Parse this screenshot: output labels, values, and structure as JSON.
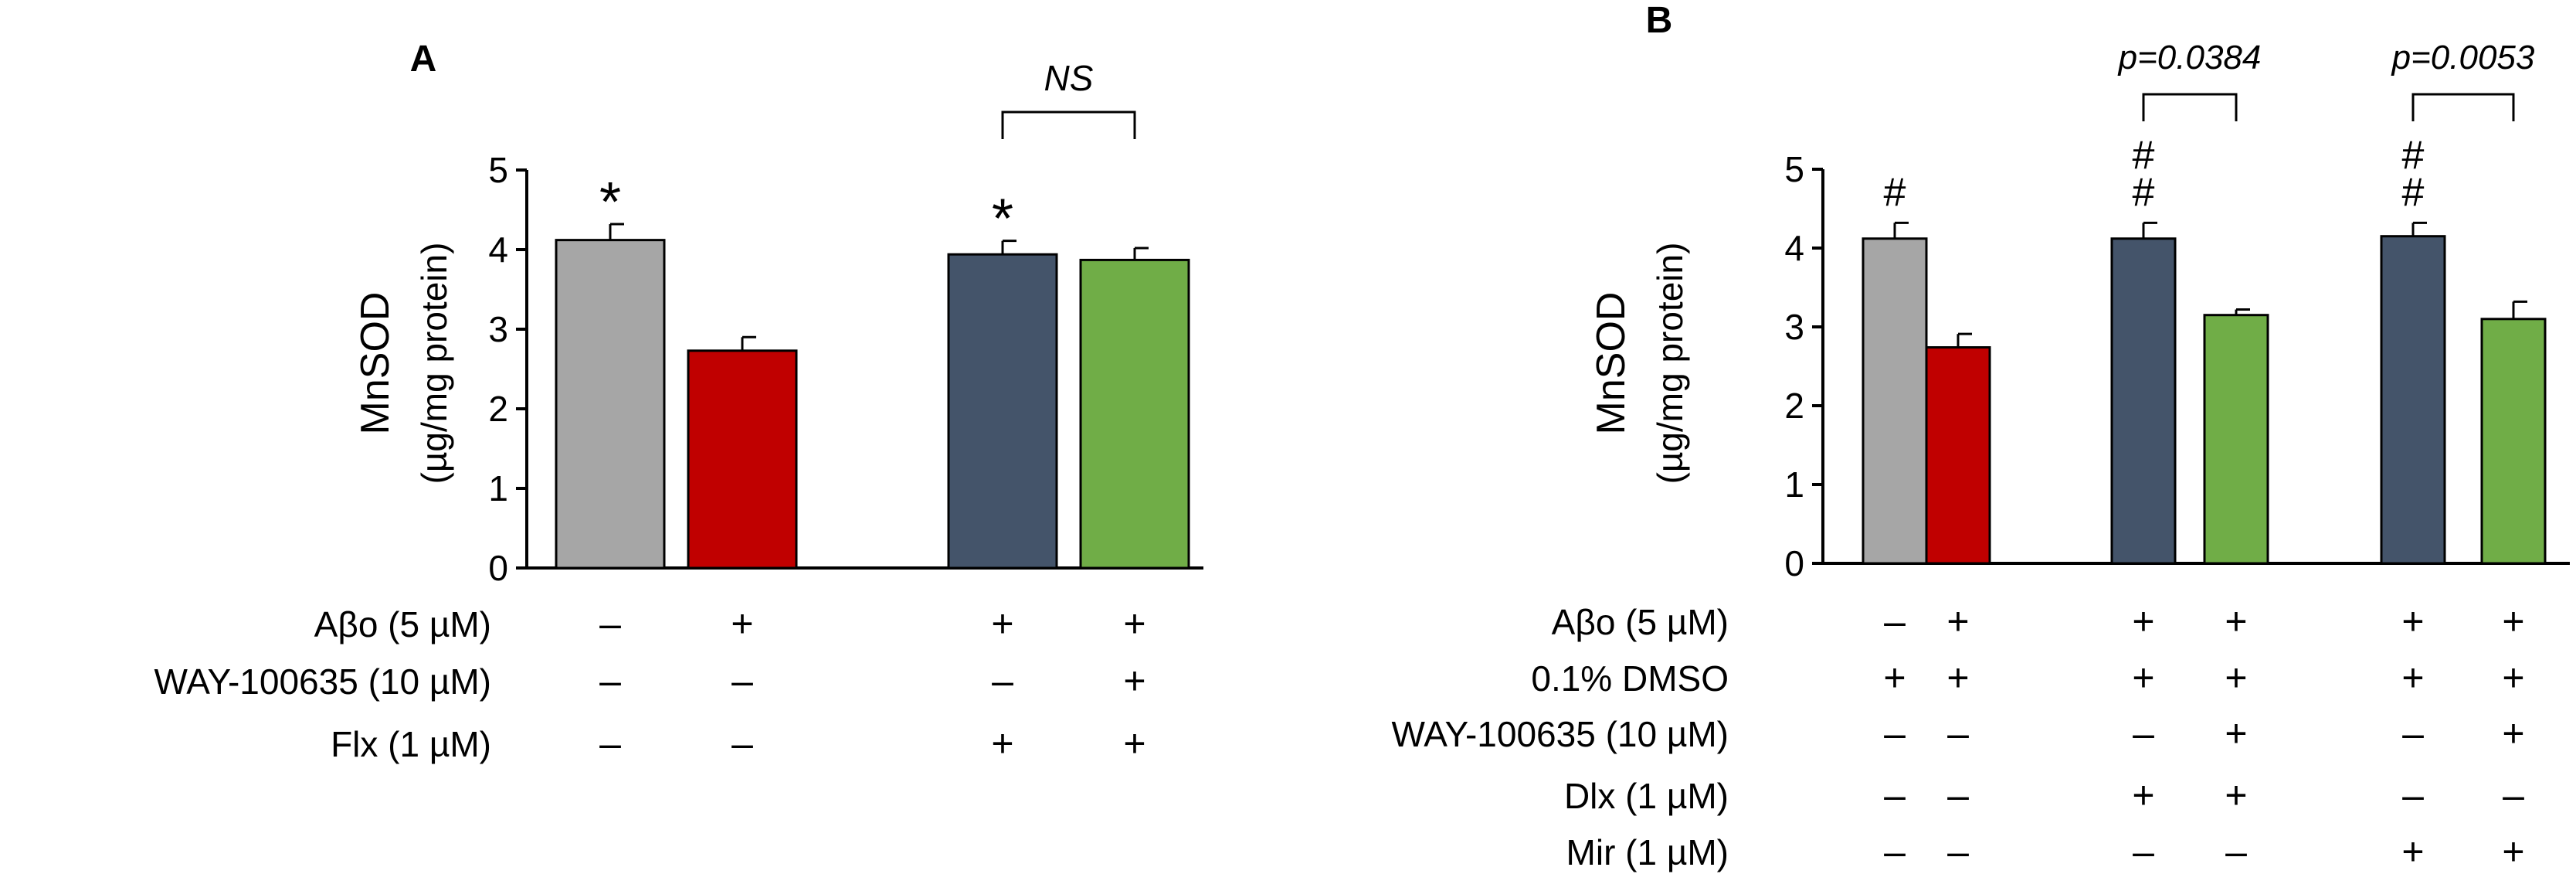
{
  "chart_data": [
    {
      "panel": "A",
      "type": "bar",
      "ylabel": "MnSOD",
      "ylabel_unit": "(µg/mg protein)",
      "ylim": [
        0,
        5
      ],
      "yticks": [
        "0",
        "1",
        "2",
        "3",
        "4",
        "5"
      ],
      "bars": [
        {
          "value": 4.12,
          "error": 0.2,
          "color": "#a6a6a6",
          "mark": "*"
        },
        {
          "value": 2.73,
          "error": 0.17,
          "color": "#c00000",
          "mark": ""
        },
        {
          "value": 3.94,
          "error": 0.17,
          "color": "#44546a",
          "mark": "*"
        },
        {
          "value": 3.87,
          "error": 0.15,
          "color": "#70ad47",
          "mark": ""
        }
      ],
      "comparisons": [
        {
          "from": 2,
          "to": 3,
          "label": "NS"
        }
      ],
      "conditions": [
        {
          "label": "Aβo (5 µM)",
          "signs": [
            "–",
            "+",
            "+",
            "+"
          ]
        },
        {
          "label": "WAY-100635 (10 µM)",
          "signs": [
            "–",
            "–",
            "–",
            "+"
          ]
        },
        {
          "label": "Flx (1 µM)",
          "signs": [
            "–",
            "–",
            "+",
            "+"
          ]
        }
      ]
    },
    {
      "panel": "B",
      "type": "bar",
      "ylabel": "MnSOD",
      "ylabel_unit": "(µg/mg protein)",
      "ylim": [
        0,
        5
      ],
      "yticks": [
        "0",
        "1",
        "2",
        "3",
        "4",
        "5"
      ],
      "bars": [
        {
          "value": 4.12,
          "error": 0.2,
          "color": "#a6a6a6",
          "mark": "#"
        },
        {
          "value": 2.74,
          "error": 0.17,
          "color": "#c00000",
          "mark": ""
        },
        {
          "value": 4.12,
          "error": 0.2,
          "color": "#44546a",
          "mark": "#\n#"
        },
        {
          "value": 3.15,
          "error": 0.07,
          "color": "#70ad47",
          "mark": ""
        },
        {
          "value": 4.15,
          "error": 0.17,
          "color": "#44546a",
          "mark": "#\n#"
        },
        {
          "value": 3.1,
          "error": 0.22,
          "color": "#70ad47",
          "mark": ""
        }
      ],
      "comparisons": [
        {
          "from": 2,
          "to": 3,
          "label": "p=0.0384"
        },
        {
          "from": 4,
          "to": 5,
          "label": "p=0.0053"
        }
      ],
      "conditions": [
        {
          "label": "Aβo (5 µM)",
          "signs": [
            "–",
            "+",
            "+",
            "+",
            "+",
            "+"
          ]
        },
        {
          "label": "0.1% DMSO",
          "signs": [
            "+",
            "+",
            "+",
            "+",
            "+",
            "+"
          ]
        },
        {
          "label": "WAY-100635 (10 µM)",
          "signs": [
            "–",
            "–",
            "–",
            "+",
            "–",
            "+"
          ]
        },
        {
          "label": "Dlx (1 µM)",
          "signs": [
            "–",
            "–",
            "+",
            "+",
            "–",
            "–"
          ]
        },
        {
          "label": "Mir (1 µM)",
          "signs": [
            "–",
            "–",
            "–",
            "–",
            "+",
            "+"
          ]
        }
      ]
    }
  ]
}
